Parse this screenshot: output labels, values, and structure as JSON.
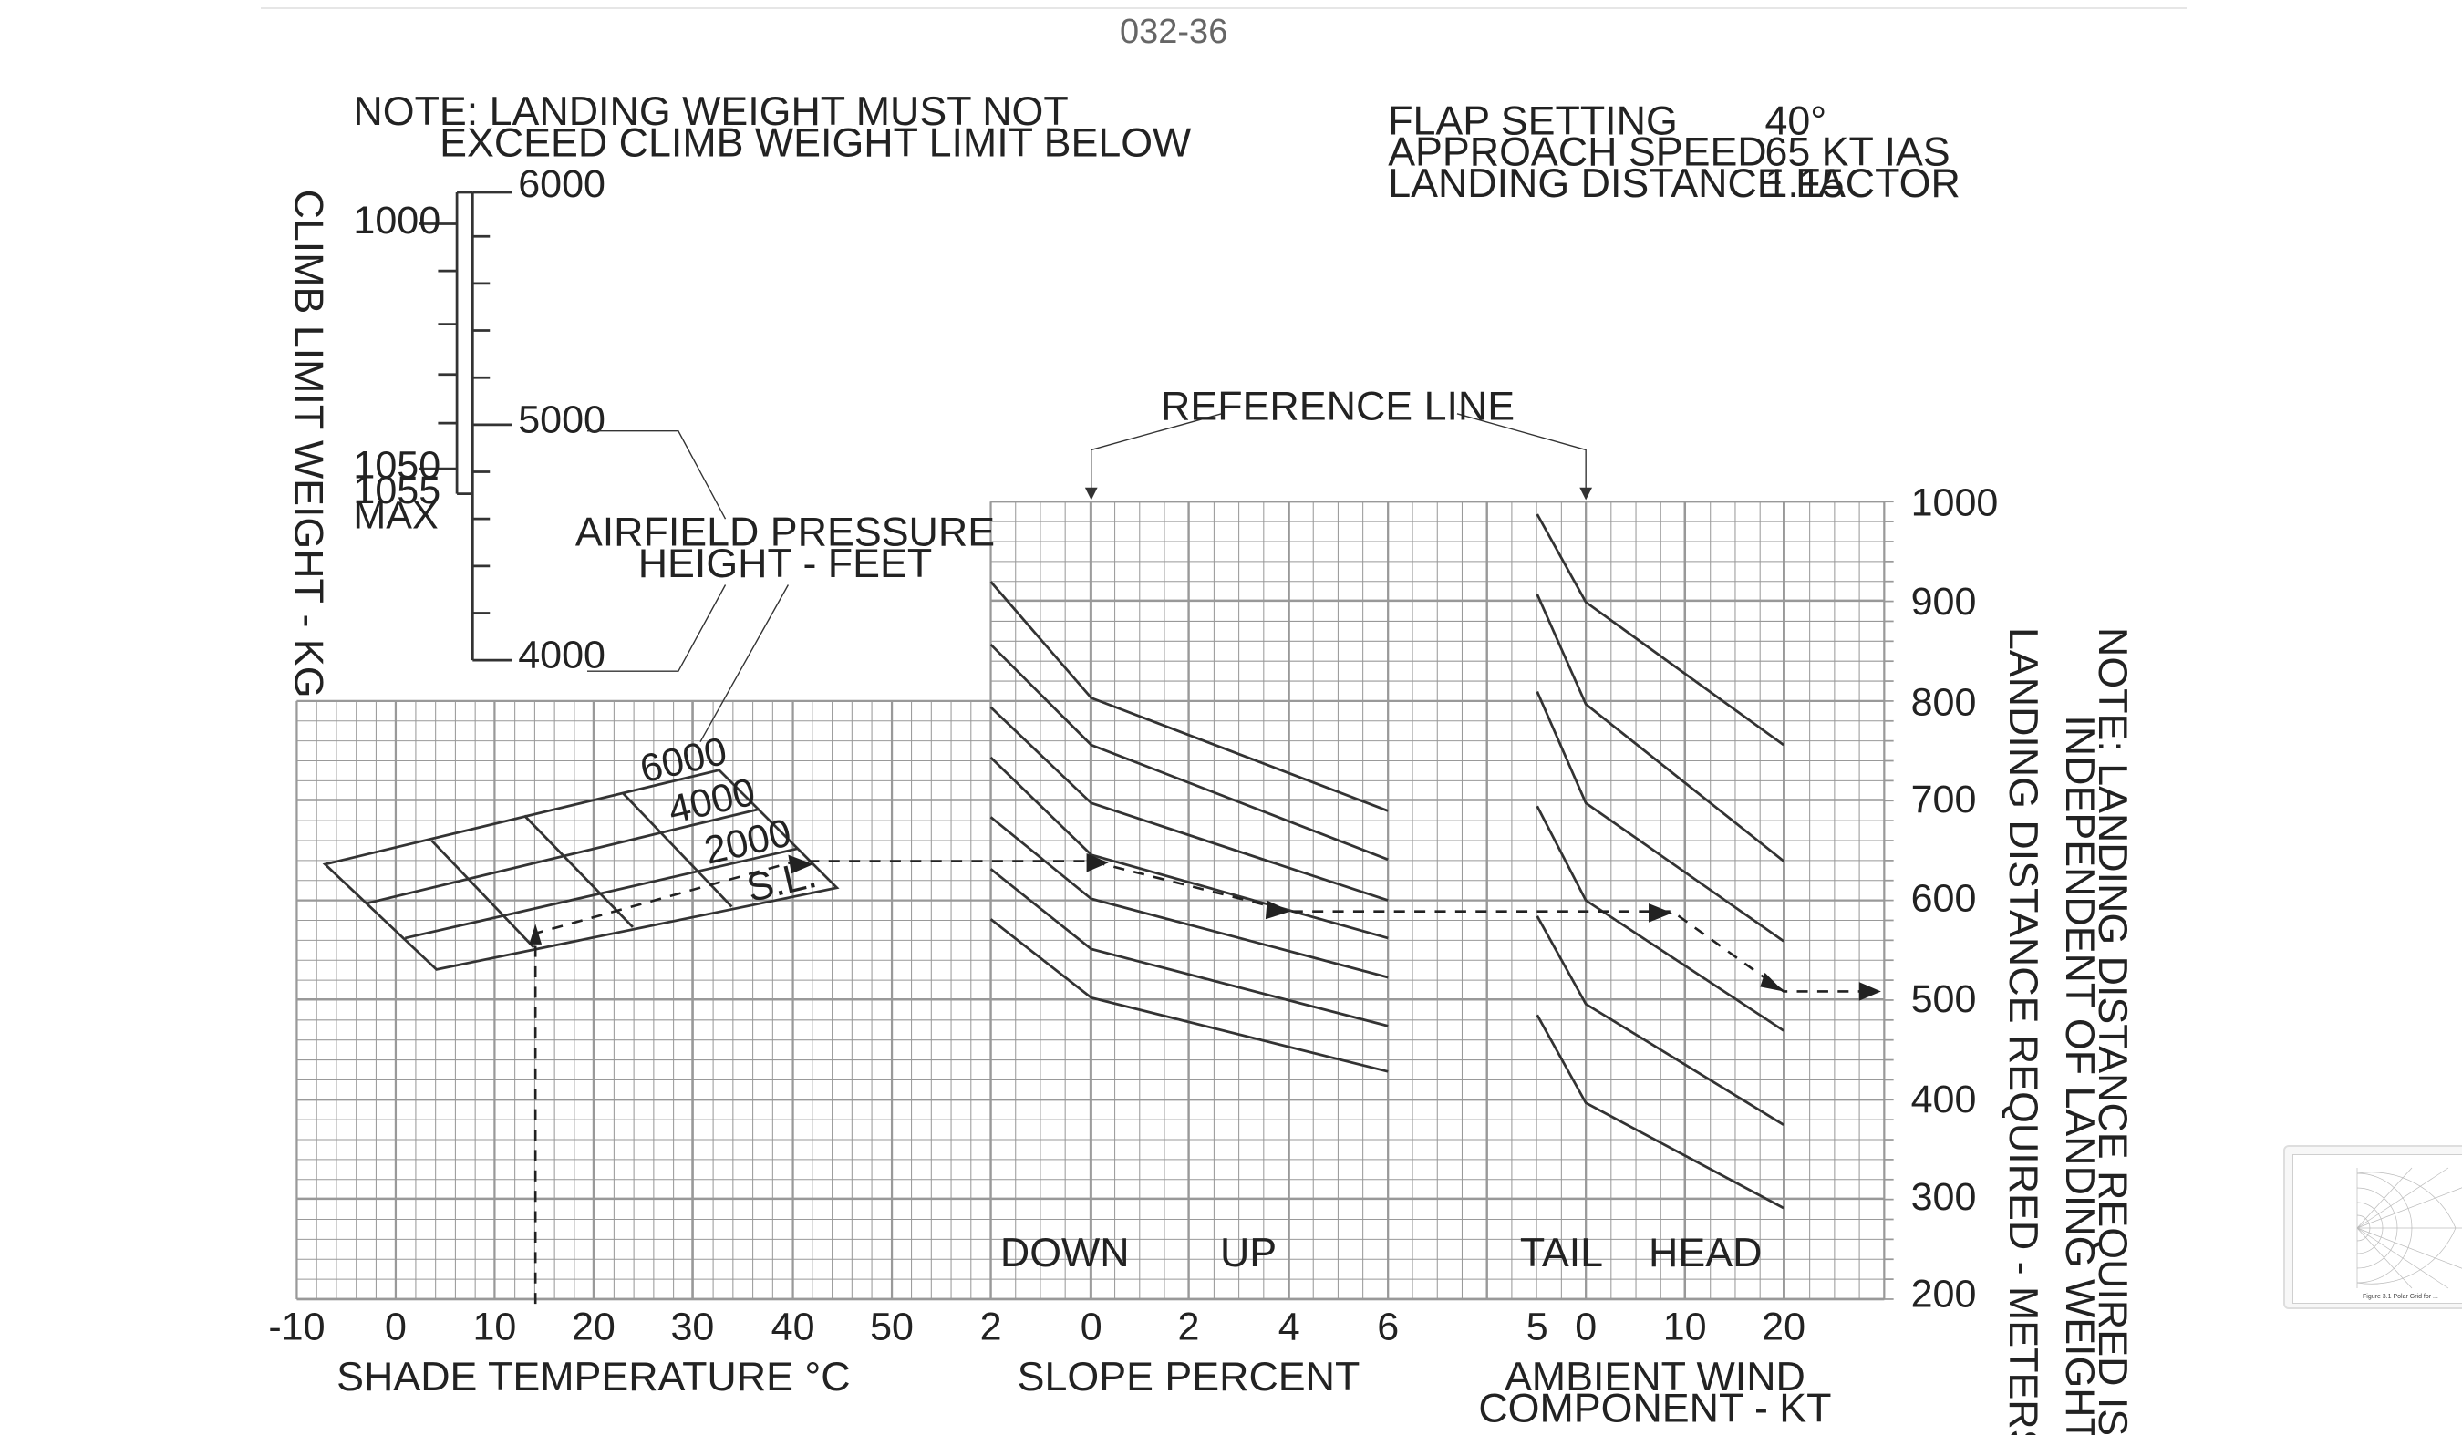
{
  "page": {
    "number": "032-36"
  },
  "notes": {
    "landing_weight_line1": "NOTE:  LANDING WEIGHT MUST NOT",
    "landing_weight_line2": "EXCEED CLIMB WEIGHT LIMIT BELOW",
    "independence_line1": "NOTE: LANDING DISTANCE REQUIRED IS",
    "independence_line2": "INDEPENDENT OF LANDING WEIGHT"
  },
  "settings": {
    "flap_label": "FLAP SETTING",
    "flap_value": "40°",
    "speed_label": "APPROACH SPEED",
    "speed_value": "65 KT IAS",
    "factor_label": "LANDING DISTANCE FACTOR",
    "factor_value": "1.15"
  },
  "climb_scale": {
    "axis_label": "CLIMB LIMIT WEIGHT - KG",
    "weight_1000": "1000",
    "weight_1050": "1050",
    "weight_1055": "1055",
    "weight_max": "MAX",
    "height_6000": "6000",
    "height_5000": "5000",
    "height_4000": "4000"
  },
  "callouts": {
    "pressure_height_line1": "AIRFIELD PRESSURE",
    "pressure_height_line2": "HEIGHT - FEET",
    "reference_line": "REFERENCE LINE"
  },
  "temperature_panel": {
    "axis_label": "SHADE TEMPERATURE °C",
    "ticks": [
      "-10",
      "0",
      "10",
      "20",
      "30",
      "40",
      "50"
    ],
    "curve_labels": [
      "6000",
      "4000",
      "2000",
      "S.L."
    ]
  },
  "slope_panel": {
    "axis_label": "SLOPE PERCENT",
    "ticks": [
      "2",
      "0",
      "2",
      "4",
      "6"
    ],
    "down_label": "DOWN",
    "up_label": "UP"
  },
  "wind_panel": {
    "axis_label_line1": "AMBIENT WIND",
    "axis_label_line2": "COMPONENT - KT",
    "ticks": [
      "5",
      "0",
      "10",
      "20"
    ],
    "tail_label": "TAIL",
    "head_label": "HEAD"
  },
  "distance_axis": {
    "label": "LANDING DISTANCE REQUIRED - METERS",
    "ticks": [
      "1000",
      "900",
      "800",
      "700",
      "600",
      "500",
      "400",
      "300",
      "200"
    ]
  },
  "example_path": {
    "temperature_c": 14,
    "pressure_height_ft": 650,
    "slope_percent_up": 3.5,
    "headwind_kt": 12,
    "distance_required_m": 509
  },
  "colors": {
    "grid": "#999999",
    "ink": "#333333",
    "text": "#222222"
  },
  "thumbnail": {
    "icon": "polar-chart-thumbnail",
    "caption": "Figure 3.1  Polar Grid for ..."
  }
}
